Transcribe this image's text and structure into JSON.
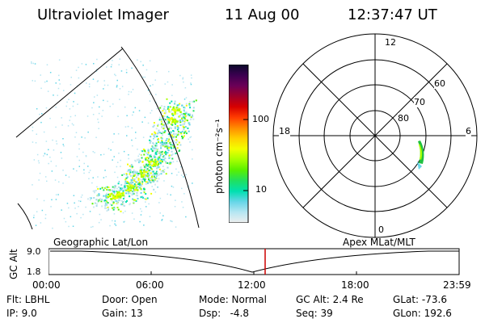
{
  "header": {
    "instrument": "Ultraviolet Imager",
    "date": "11 Aug 00",
    "time": "12:37:47 UT"
  },
  "colorbar": {
    "unit_label": "photon cm⁻²s⁻¹",
    "ticks": [
      "100",
      "10"
    ],
    "colors": [
      "#0a0a2a",
      "#3b0050",
      "#6b0057",
      "#a0002b",
      "#d60000",
      "#ff3c00",
      "#ff8c00",
      "#ffd000",
      "#f2ff00",
      "#a8ff00",
      "#58f000",
      "#20e060",
      "#00e0b0",
      "#66d6e8",
      "#b6e6f2",
      "#eeeeee"
    ]
  },
  "polar_plot": {
    "mlt_labels": [
      "12",
      "18",
      "6",
      "0"
    ],
    "lat_labels": [
      "60",
      "70",
      "80"
    ]
  },
  "timeline": {
    "left_label": "Geographic Lat/Lon",
    "right_label": "Apex MLat/MLT",
    "y_axis_label": "GC Alt",
    "y_ticks": [
      "9.0",
      "1.8"
    ],
    "x_ticks": [
      "00:00",
      "06:00",
      "12:00",
      "18:00",
      "23:59"
    ],
    "marker_color": "#cc0000",
    "curve_color": "#000000"
  },
  "info": {
    "filter": "Flt: LBHL",
    "ip": "IP: 9.0",
    "door": "Door: Open",
    "gain": "Gain: 13",
    "mode": "Mode: Normal",
    "dsp": "Dsp:   -4.8",
    "gc_alt": "GC Alt: 2.4 Re",
    "seq": "Seq: 39",
    "glat": "GLat: -73.6",
    "glon": "GLon: 192.6"
  }
}
